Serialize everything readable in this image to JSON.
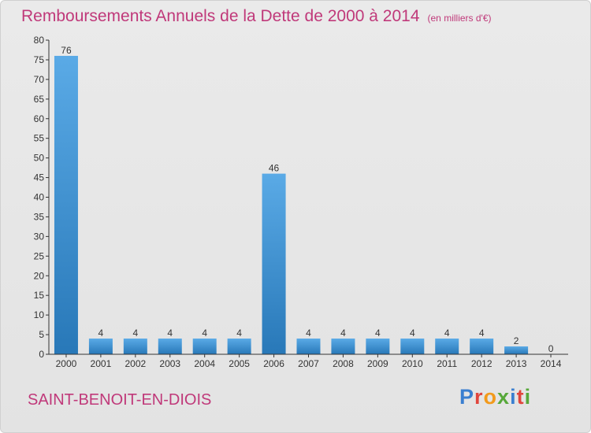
{
  "chart_data": {
    "type": "bar",
    "title": "Remboursements Annuels de la Dette de 2000 à 2014",
    "unit": "(en milliers d'€)",
    "categories": [
      "2000",
      "2001",
      "2002",
      "2003",
      "2004",
      "2005",
      "2006",
      "2007",
      "2008",
      "2009",
      "2010",
      "2011",
      "2012",
      "2013",
      "2014"
    ],
    "values": [
      76,
      4,
      4,
      4,
      4,
      4,
      46,
      4,
      4,
      4,
      4,
      4,
      4,
      2,
      0
    ],
    "data_labels": [
      "76",
      "4",
      "4",
      "4",
      "4",
      "4",
      "46",
      "4",
      "4",
      "4",
      "4",
      "4",
      "4",
      "2",
      "0"
    ],
    "xlabel": "",
    "ylabel": "",
    "ylim": [
      0,
      80
    ],
    "yticks": [
      0,
      5,
      10,
      15,
      20,
      25,
      30,
      35,
      40,
      45,
      50,
      55,
      60,
      65,
      70,
      75,
      80
    ],
    "ytick_labels": [
      "0",
      "5",
      "10",
      "15",
      "20",
      "25",
      "30",
      "35",
      "40",
      "45",
      "50",
      "55",
      "60",
      "65",
      "70",
      "75",
      "80"
    ],
    "grid": false,
    "legend": "none"
  },
  "footer": {
    "commune": "SAINT-BENOIT-EN-DIOIS",
    "logo_text": "Proxiti"
  },
  "colors": {
    "title": "#c0397a",
    "bar_light": "#5aaae6",
    "bar_dark": "#2878b8",
    "axis": "#333333",
    "logo_letters": [
      "#3a7fd0",
      "#e0453c",
      "#f29a1c",
      "#57a83a",
      "#3a7fd0",
      "#e0453c",
      "#57a83a"
    ]
  }
}
